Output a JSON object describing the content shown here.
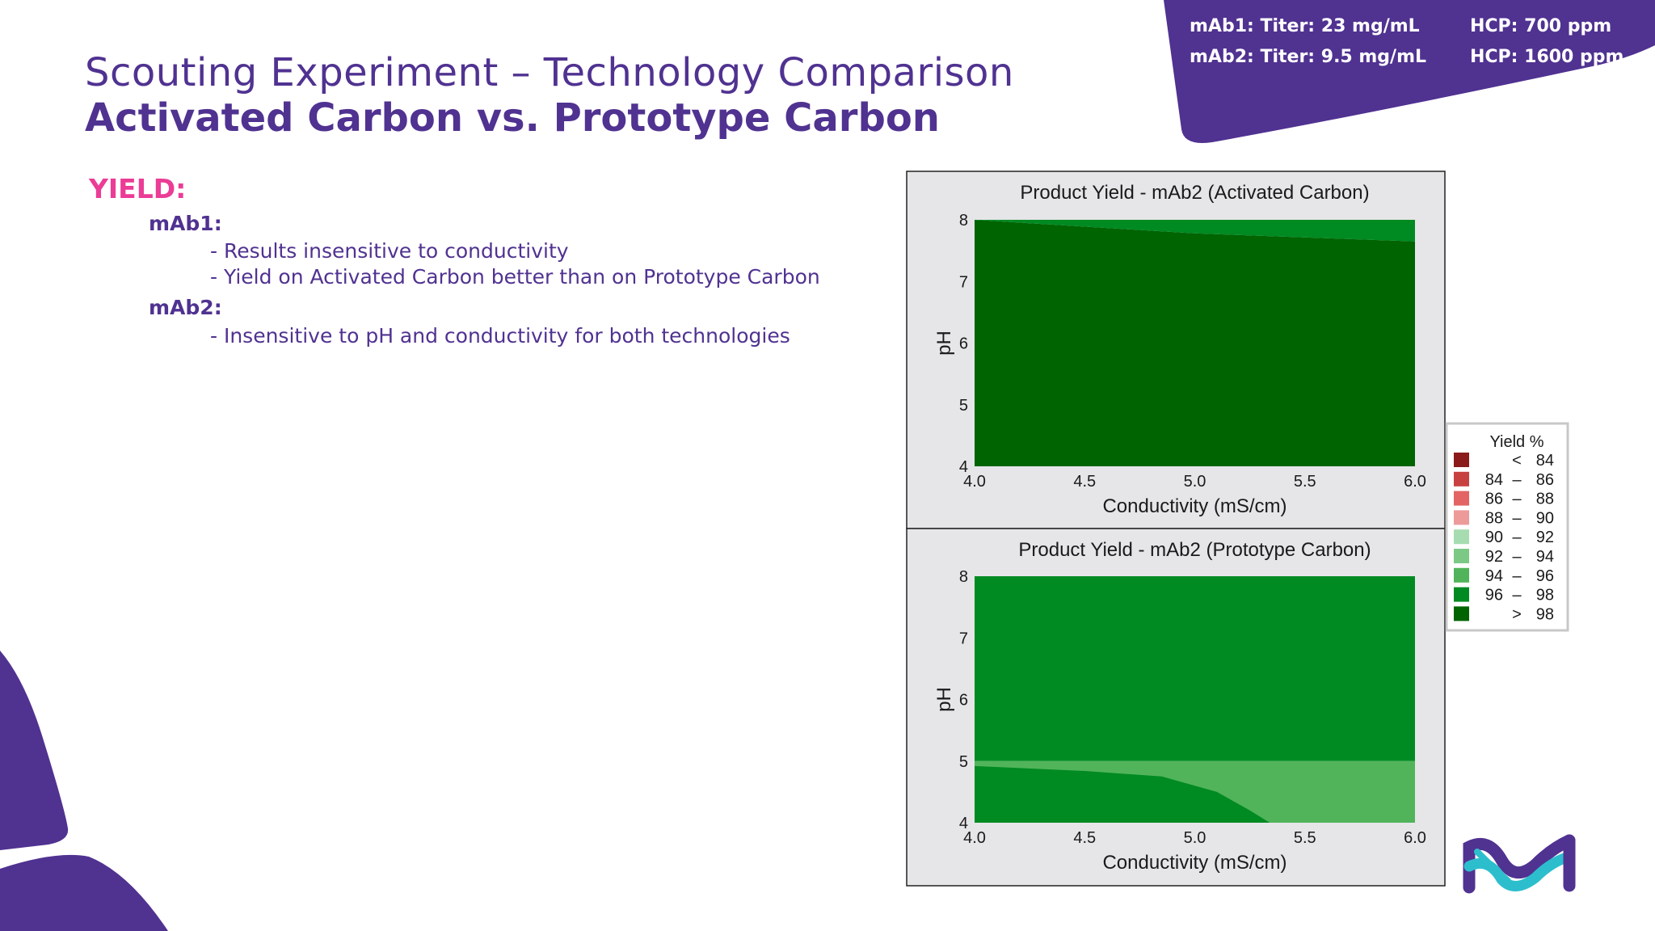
{
  "header": {
    "title_line1": "Scouting Experiment – Technology Comparison",
    "title_line2": "Activated Carbon vs. Prototype Carbon"
  },
  "banner": {
    "mab1_titer": "mAb1: Titer: 23 mg/mL",
    "mab1_hcp": "HCP: 700 ppm",
    "mab2_titer": "mAb2: Titer: 9.5 mg/mL",
    "mab2_hcp": "HCP: 1600 ppm"
  },
  "content": {
    "heading": "YIELD:",
    "mab1_label": "mAb1:",
    "mab1_bullets": [
      "- Results insensitive to conductivity",
      "- Yield on Activated Carbon better than on Prototype Carbon"
    ],
    "mab2_label": "mAb2:",
    "mab2_bullets": [
      "- Insensitive to pH and conductivity for both technologies"
    ]
  },
  "colors": {
    "brand_purple": "#503291",
    "accent_pink": "#eb3c96",
    "logo_cyan": "#2dbecd"
  },
  "chart_data": [
    {
      "type": "heatmap",
      "subtype": "contour",
      "title": "Product Yield - mAb2 (Activated Carbon)",
      "xlabel": "Conductivity (mS/cm)",
      "ylabel": "pH",
      "xlim": [
        4.0,
        6.0
      ],
      "ylim": [
        4,
        8
      ],
      "xticks": [
        "4.0",
        "4.5",
        "5.0",
        "5.5",
        "6.0"
      ],
      "yticks": [
        "4",
        "5",
        "6",
        "7",
        "8"
      ],
      "regions": [
        {
          "band": "> 98",
          "color": "#006400",
          "boundary": [
            [
              4.0,
              4
            ],
            [
              6.0,
              4
            ],
            [
              6.0,
              7.65
            ],
            [
              5.0,
              7.78
            ],
            [
              4.0,
              8
            ]
          ]
        },
        {
          "band": "96 – 98",
          "color": "#008a22",
          "boundary": [
            [
              4.0,
              8
            ],
            [
              5.0,
              7.78
            ],
            [
              6.0,
              7.65
            ],
            [
              6.0,
              8
            ]
          ]
        }
      ]
    },
    {
      "type": "heatmap",
      "subtype": "contour",
      "title": "Product Yield - mAb2 (Prototype Carbon)",
      "xlabel": "Conductivity (mS/cm)",
      "ylabel": "pH",
      "xlim": [
        4.0,
        6.0
      ],
      "ylim": [
        4,
        8
      ],
      "xticks": [
        "4.0",
        "4.5",
        "5.0",
        "5.5",
        "6.0"
      ],
      "yticks": [
        "4",
        "5",
        "6",
        "7",
        "8"
      ],
      "regions": [
        {
          "band": "96 – 98",
          "color": "#008a22",
          "boundary": [
            [
              4.0,
              5.0
            ],
            [
              6.0,
              5.0
            ],
            [
              6.0,
              8
            ],
            [
              4.0,
              8
            ]
          ]
        },
        {
          "band": "94 – 96",
          "color": "#51b45a",
          "boundary": [
            [
              4.0,
              4
            ],
            [
              6.0,
              4
            ],
            [
              6.0,
              5.0
            ],
            [
              4.0,
              5.0
            ]
          ]
        },
        {
          "band": "96 – 98",
          "color": "#008a22",
          "boundary": [
            [
              4.0,
              4
            ],
            [
              5.34,
              4
            ],
            [
              5.25,
              4.2
            ],
            [
              5.1,
              4.5
            ],
            [
              4.85,
              4.75
            ],
            [
              4.5,
              4.84
            ],
            [
              4.0,
              4.92
            ]
          ]
        }
      ]
    }
  ],
  "legend": {
    "title": "Yield %",
    "items": [
      {
        "label_a": "",
        "sep": "<",
        "label_b": "84",
        "color": "#8b1a1a"
      },
      {
        "label_a": "84",
        "sep": "–",
        "label_b": "86",
        "color": "#c84141"
      },
      {
        "label_a": "86",
        "sep": "–",
        "label_b": "88",
        "color": "#e36464"
      },
      {
        "label_a": "88",
        "sep": "–",
        "label_b": "90",
        "color": "#ec9a9a"
      },
      {
        "label_a": "90",
        "sep": "–",
        "label_b": "92",
        "color": "#a6dcb0"
      },
      {
        "label_a": "92",
        "sep": "–",
        "label_b": "94",
        "color": "#7cc985"
      },
      {
        "label_a": "94",
        "sep": "–",
        "label_b": "96",
        "color": "#51b45a"
      },
      {
        "label_a": "96",
        "sep": "–",
        "label_b": "98",
        "color": "#008a22"
      },
      {
        "label_a": "",
        "sep": ">",
        "label_b": "98",
        "color": "#006400"
      }
    ]
  }
}
